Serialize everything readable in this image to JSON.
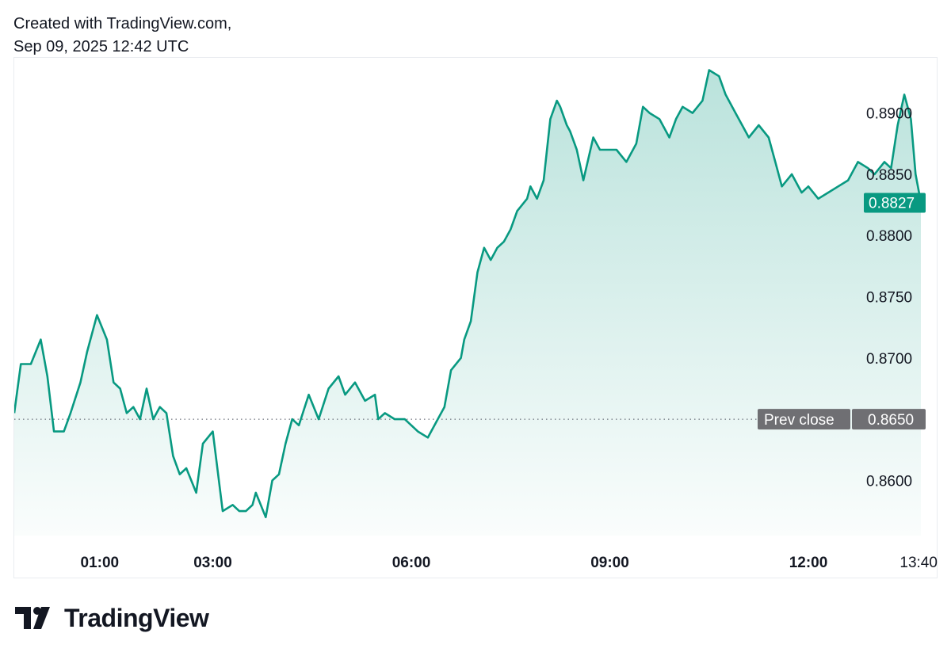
{
  "header": {
    "line1": "Created with TradingView.com,",
    "line2": "Sep 09, 2025 12:42 UTC"
  },
  "brand": {
    "name": "TradingView",
    "logo_icon": "tradingview-logo-icon"
  },
  "colors": {
    "line": "#089981",
    "fill_top": "#089981",
    "price_tag": "#089981",
    "prev_close_tag": "#6f6f73"
  },
  "chart_data": {
    "type": "area",
    "title": "",
    "xlabel": "",
    "ylabel": "",
    "ylim": [
      0.8555,
      0.8945
    ],
    "y_ticks": [
      "0.8900",
      "0.8850",
      "0.8800",
      "0.8750",
      "0.8700",
      "0.8600"
    ],
    "y_tick_values": [
      0.89,
      0.885,
      0.88,
      0.875,
      0.87,
      0.86
    ],
    "x_ticks": [
      "01:00",
      "03:00",
      "06:00",
      "09:00",
      "12:00",
      "13:40"
    ],
    "x_tick_hours": [
      1.0,
      3.0,
      6.0,
      9.0,
      12.0,
      13.6667
    ],
    "grid": false,
    "last_price": {
      "label": "0.8827",
      "value": 0.8827
    },
    "prev_close": {
      "label": "Prev close",
      "value_label": "0.8650",
      "value": 0.865
    },
    "series": [
      {
        "x": [
          0.0,
          0.1,
          0.25,
          0.4,
          0.5,
          0.6,
          0.75,
          0.85,
          1.0,
          1.1,
          1.25,
          1.4,
          1.5,
          1.6,
          1.7,
          1.8,
          1.9,
          2.0,
          2.1,
          2.2,
          2.3,
          2.4,
          2.5,
          2.6,
          2.75,
          2.85,
          3.0,
          3.15,
          3.3,
          3.4,
          3.5,
          3.6,
          3.65,
          3.8,
          3.9,
          4.0,
          4.1,
          4.2,
          4.3,
          4.45,
          4.6,
          4.75,
          4.9,
          5.0,
          5.15,
          5.3,
          5.45,
          5.5,
          5.6,
          5.75,
          5.9,
          6.0,
          6.1,
          6.25,
          6.4,
          6.5,
          6.6,
          6.75,
          6.8,
          6.9,
          7.0,
          7.1,
          7.2,
          7.25,
          7.3,
          7.4,
          7.5,
          7.6,
          7.75,
          7.8,
          7.9,
          8.0,
          8.1,
          8.2,
          8.25,
          8.35,
          8.4,
          8.5,
          8.6,
          8.75,
          8.85,
          9.0,
          9.1,
          9.25,
          9.4,
          9.5,
          9.6,
          9.75,
          9.9,
          10.0,
          10.1,
          10.25,
          10.4,
          10.5,
          10.65,
          10.75,
          10.9,
          11.0,
          11.1,
          11.25,
          11.4,
          11.5,
          11.6,
          11.75,
          11.9,
          12.0,
          12.15,
          12.3,
          12.45,
          12.6,
          12.75,
          12.9,
          13.0,
          13.15,
          13.25,
          13.35,
          13.45,
          13.55,
          13.62,
          13.7
        ],
        "values": [
          0.8655,
          0.8695,
          0.8695,
          0.8715,
          0.8685,
          0.864,
          0.864,
          0.8655,
          0.868,
          0.8705,
          0.8735,
          0.8715,
          0.868,
          0.8675,
          0.8655,
          0.866,
          0.865,
          0.8675,
          0.865,
          0.866,
          0.8655,
          0.862,
          0.8605,
          0.861,
          0.859,
          0.863,
          0.864,
          0.8575,
          0.858,
          0.8575,
          0.8575,
          0.858,
          0.859,
          0.857,
          0.86,
          0.8605,
          0.863,
          0.865,
          0.8645,
          0.867,
          0.865,
          0.8675,
          0.8685,
          0.867,
          0.868,
          0.8665,
          0.867,
          0.865,
          0.8655,
          0.865,
          0.865,
          0.8645,
          0.864,
          0.8635,
          0.865,
          0.866,
          0.869,
          0.87,
          0.8715,
          0.873,
          0.877,
          0.879,
          0.878,
          0.8785,
          0.879,
          0.8795,
          0.8805,
          0.882,
          0.883,
          0.884,
          0.883,
          0.8845,
          0.8895,
          0.891,
          0.8905,
          0.889,
          0.8885,
          0.887,
          0.8845,
          0.888,
          0.887,
          0.887,
          0.887,
          0.886,
          0.8875,
          0.8905,
          0.89,
          0.8895,
          0.888,
          0.8895,
          0.8905,
          0.89,
          0.891,
          0.8935,
          0.893,
          0.8915,
          0.89,
          0.889,
          0.888,
          0.889,
          0.888,
          0.886,
          0.884,
          0.885,
          0.8835,
          0.884,
          0.883,
          0.8835,
          0.884,
          0.8845,
          0.886,
          0.8855,
          0.885,
          0.886,
          0.8855,
          0.889,
          0.8915,
          0.8895,
          0.885,
          0.8827
        ]
      }
    ]
  }
}
